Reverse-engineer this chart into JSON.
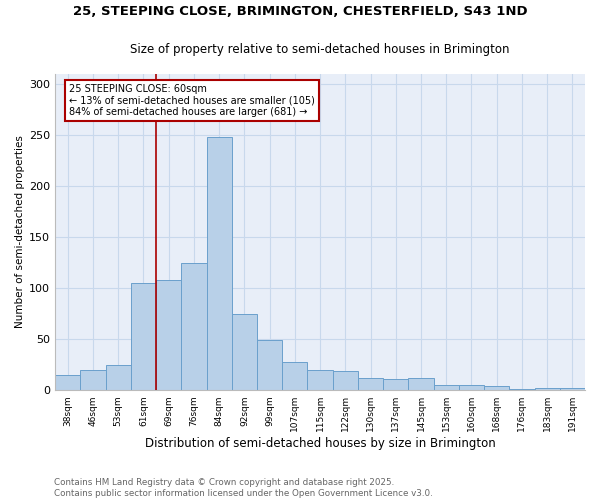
{
  "title1": "25, STEEPING CLOSE, BRIMINGTON, CHESTERFIELD, S43 1ND",
  "title2": "Size of property relative to semi-detached houses in Brimington",
  "xlabel": "Distribution of semi-detached houses by size in Brimington",
  "ylabel": "Number of semi-detached properties",
  "footer1": "Contains HM Land Registry data © Crown copyright and database right 2025.",
  "footer2": "Contains public sector information licensed under the Open Government Licence v3.0.",
  "annotation_title": "25 STEEPING CLOSE: 60sqm",
  "annotation_line1": "← 13% of semi-detached houses are smaller (105)",
  "annotation_line2": "84% of semi-detached houses are larger (681) →",
  "bar_color": "#b8d0e8",
  "bar_edge_color": "#6aa0cc",
  "vline_color": "#aa0000",
  "categories": [
    "38sqm",
    "46sqm",
    "53sqm",
    "61sqm",
    "69sqm",
    "76sqm",
    "84sqm",
    "92sqm",
    "99sqm",
    "107sqm",
    "115sqm",
    "122sqm",
    "130sqm",
    "137sqm",
    "145sqm",
    "153sqm",
    "160sqm",
    "168sqm",
    "176sqm",
    "183sqm",
    "191sqm"
  ],
  "values": [
    15,
    20,
    25,
    105,
    108,
    125,
    248,
    75,
    49,
    28,
    20,
    19,
    12,
    11,
    12,
    5,
    5,
    4,
    1,
    2,
    2
  ],
  "ylim": [
    0,
    310
  ],
  "yticks": [
    0,
    50,
    100,
    150,
    200,
    250,
    300
  ],
  "grid_color": "#c8d8ec",
  "bg_color": "#e8eef8",
  "vline_x": 3.5
}
